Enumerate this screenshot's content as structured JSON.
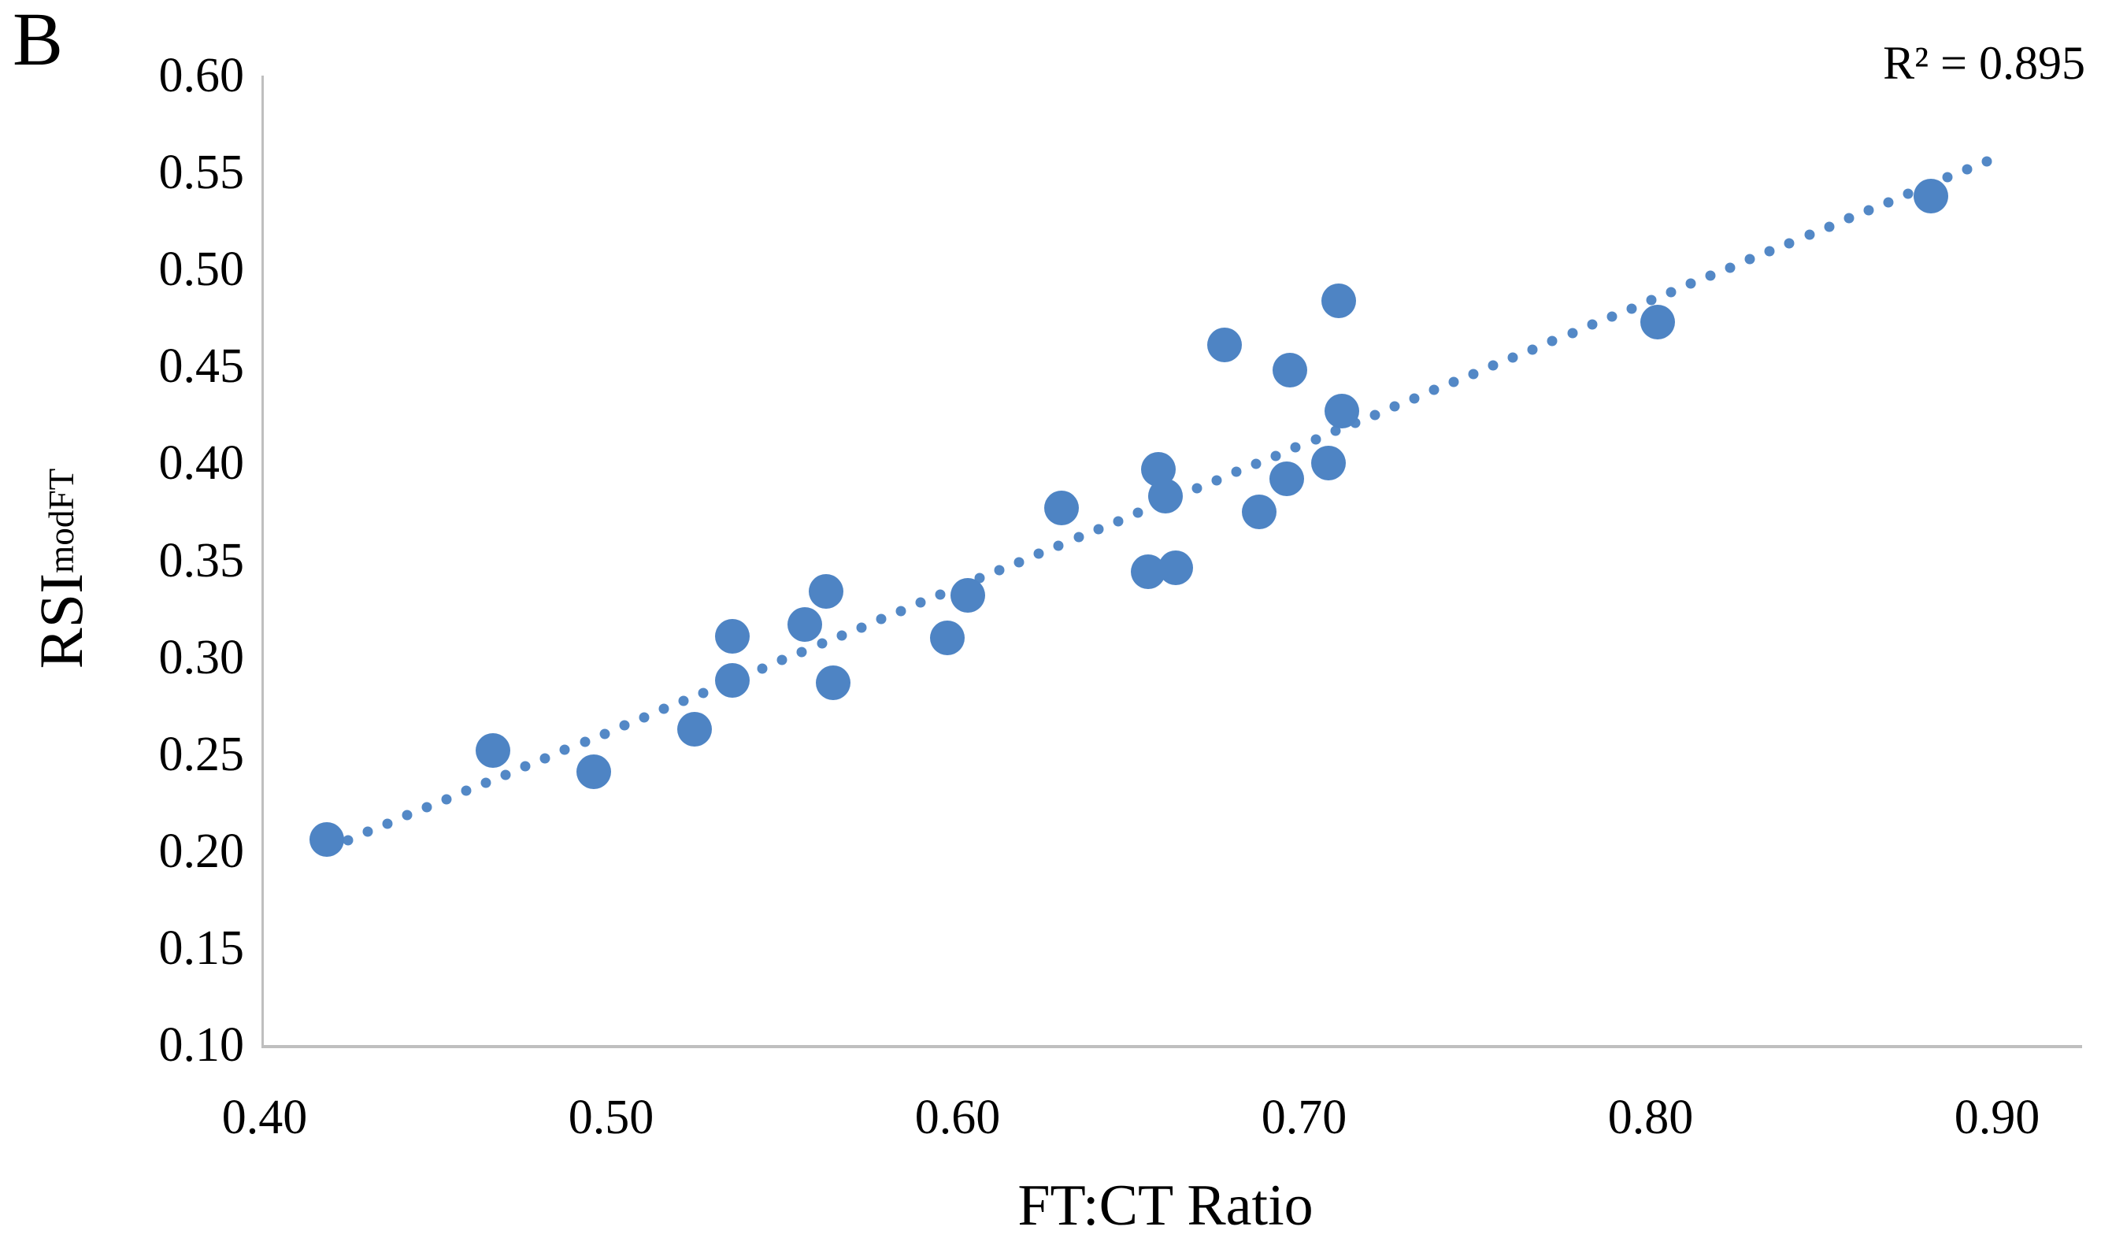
{
  "panel_label": "B",
  "annotation": {
    "text": "R² = 0.895"
  },
  "chart_data": {
    "type": "scatter",
    "title": "",
    "xlabel": "FT:CT Ratio",
    "ylabel": {
      "base": "RSI",
      "sub": "mod",
      "sup": "FT"
    },
    "xlim": [
      0.4,
      0.9
    ],
    "ylim": [
      0.1,
      0.6
    ],
    "grid": false,
    "legend": "none",
    "x_ticks": [
      "0.40",
      "0.50",
      "0.60",
      "0.70",
      "0.80",
      "0.90"
    ],
    "x_tick_values": [
      0.4,
      0.5,
      0.6,
      0.7,
      0.8,
      0.9
    ],
    "y_ticks": [
      "0.60",
      "0.55",
      "0.50",
      "0.45",
      "0.40",
      "0.35",
      "0.30",
      "0.25",
      "0.20",
      "0.15",
      "0.10"
    ],
    "y_tick_values": [
      0.6,
      0.55,
      0.5,
      0.45,
      0.4,
      0.35,
      0.3,
      0.25,
      0.2,
      0.15,
      0.1
    ],
    "r_squared": 0.895,
    "points": [
      [
        0.418,
        0.206
      ],
      [
        0.466,
        0.252
      ],
      [
        0.495,
        0.241
      ],
      [
        0.524,
        0.263
      ],
      [
        0.535,
        0.288
      ],
      [
        0.535,
        0.311
      ],
      [
        0.556,
        0.317
      ],
      [
        0.562,
        0.334
      ],
      [
        0.564,
        0.287
      ],
      [
        0.597,
        0.31
      ],
      [
        0.603,
        0.332
      ],
      [
        0.63,
        0.377
      ],
      [
        0.655,
        0.344
      ],
      [
        0.663,
        0.346
      ],
      [
        0.658,
        0.397
      ],
      [
        0.66,
        0.383
      ],
      [
        0.687,
        0.375
      ],
      [
        0.695,
        0.392
      ],
      [
        0.707,
        0.4
      ],
      [
        0.696,
        0.448
      ],
      [
        0.677,
        0.461
      ],
      [
        0.71,
        0.484
      ],
      [
        0.711,
        0.427
      ],
      [
        0.802,
        0.473
      ],
      [
        0.881,
        0.538
      ]
    ],
    "trendline": {
      "style": "dotted",
      "slope": 0.74,
      "intercept": -0.108,
      "x_start": 0.424,
      "x_end": 0.902,
      "dot_step_x": 0.0057
    },
    "colors": {
      "marker": "#4E84C4",
      "trend": "#5388C6",
      "axis": "#BFBFBF",
      "text": "#000000"
    }
  }
}
